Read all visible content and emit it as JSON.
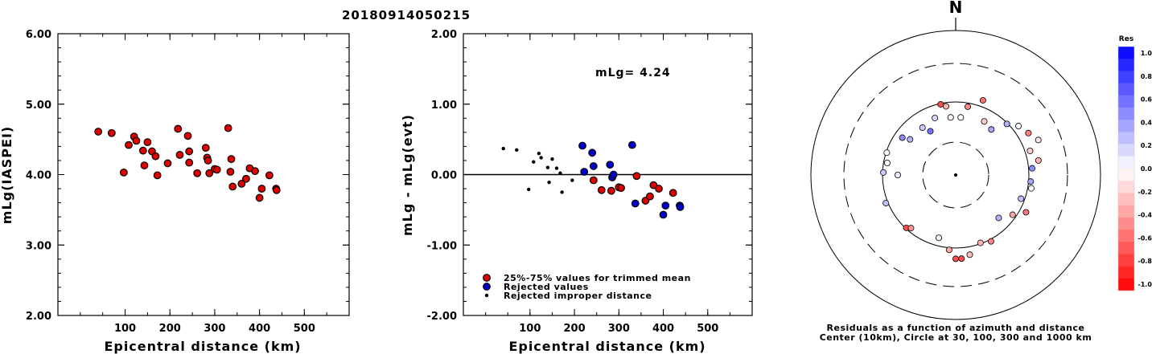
{
  "figure_title": "20180914050215",
  "chart_data": [
    {
      "type": "scatter",
      "name": "left",
      "xlabel": "Epicentral distance (km)",
      "ylabel": "mLg(IASPEI)",
      "xlim": [
        -50,
        600
      ],
      "ylim": [
        2.0,
        6.0
      ],
      "xticks": [
        100,
        200,
        300,
        400,
        500
      ],
      "yticks": [
        "2.00",
        "3.00",
        "4.00",
        "5.00",
        "6.00"
      ],
      "points": [
        [
          40,
          4.61
        ],
        [
          70,
          4.59
        ],
        [
          97,
          4.03
        ],
        [
          108,
          4.42
        ],
        [
          120,
          4.54
        ],
        [
          125,
          4.48
        ],
        [
          140,
          4.34
        ],
        [
          143,
          4.13
        ],
        [
          150,
          4.46
        ],
        [
          160,
          4.33
        ],
        [
          168,
          4.26
        ],
        [
          172,
          3.99
        ],
        [
          195,
          4.16
        ],
        [
          218,
          4.65
        ],
        [
          222,
          4.28
        ],
        [
          240,
          4.55
        ],
        [
          243,
          4.33
        ],
        [
          243,
          4.17
        ],
        [
          261,
          4.02
        ],
        [
          280,
          4.38
        ],
        [
          283,
          4.24
        ],
        [
          285,
          4.2
        ],
        [
          288,
          4.02
        ],
        [
          300,
          4.08
        ],
        [
          305,
          4.07
        ],
        [
          330,
          4.66
        ],
        [
          335,
          4.04
        ],
        [
          337,
          4.22
        ],
        [
          340,
          3.83
        ],
        [
          360,
          3.87
        ],
        [
          370,
          3.94
        ],
        [
          378,
          4.09
        ],
        [
          390,
          4.05
        ],
        [
          400,
          3.67
        ],
        [
          405,
          3.8
        ],
        [
          422,
          3.99
        ],
        [
          437,
          3.8
        ],
        [
          438,
          3.78
        ]
      ]
    },
    {
      "type": "scatter",
      "name": "middle",
      "xlabel": "Epicentral distance (km)",
      "ylabel": "mLg - mLg(evt)",
      "annotation": "mLg= 4.24",
      "xlim": [
        -50,
        600
      ],
      "ylim": [
        -2.0,
        2.0
      ],
      "xticks": [
        100,
        200,
        300,
        400,
        500
      ],
      "yticks": [
        "-2.00",
        "-1.00",
        "0.00",
        "1.00",
        "2.00"
      ],
      "zero_line": 0,
      "legend": [
        {
          "label": "25%-75% values for trimmed mean",
          "color": "#dd0000",
          "marker": "large"
        },
        {
          "label": "Rejected values",
          "color": "#0000cc",
          "marker": "large"
        },
        {
          "label": "Rejected improper distance",
          "color": "#000000",
          "marker": "small"
        }
      ],
      "series": [
        {
          "name": "25%-75% values for trimmed mean",
          "color": "#dd0000",
          "points": [
            [
              243,
              -0.08
            ],
            [
              261,
              -0.22
            ],
            [
              283,
              -0.23
            ],
            [
              300,
              -0.18
            ],
            [
              305,
              -0.19
            ],
            [
              340,
              -0.02
            ],
            [
              360,
              -0.37
            ],
            [
              370,
              -0.31
            ],
            [
              378,
              -0.15
            ],
            [
              390,
              -0.2
            ],
            [
              422,
              -0.26
            ]
          ]
        },
        {
          "name": "Rejected values",
          "color": "#0000cc",
          "points": [
            [
              218,
              0.41
            ],
            [
              222,
              0.04
            ],
            [
              240,
              0.31
            ],
            [
              243,
              0.12
            ],
            [
              280,
              0.14
            ],
            [
              285,
              -0.04
            ],
            [
              288,
              0.0
            ],
            [
              330,
              0.42
            ],
            [
              337,
              -0.41
            ],
            [
              400,
              -0.57
            ],
            [
              405,
              -0.44
            ],
            [
              437,
              -0.44
            ],
            [
              438,
              -0.46
            ]
          ]
        },
        {
          "name": "Rejected improper distance",
          "color": "#000000",
          "points": [
            [
              40,
              0.37
            ],
            [
              70,
              0.35
            ],
            [
              97,
              -0.21
            ],
            [
              108,
              0.18
            ],
            [
              120,
              0.3
            ],
            [
              125,
              0.24
            ],
            [
              140,
              0.1
            ],
            [
              143,
              -0.11
            ],
            [
              150,
              0.22
            ],
            [
              160,
              0.09
            ],
            [
              168,
              0.02
            ],
            [
              172,
              -0.25
            ],
            [
              195,
              -0.08
            ]
          ]
        }
      ]
    },
    {
      "type": "polar",
      "name": "azimuth",
      "north_label": "N",
      "caption_line1": "Residuals as a function of azimuth and distance",
      "caption_line2": "Center (10km), Circle at 30, 100, 300 and 1000 km",
      "colorbar_title": "Res",
      "colorbar_ticks": [
        "1.0",
        "0.8",
        "0.6",
        "0.4",
        "0.2",
        "0.0",
        "-0.2",
        "-0.4",
        "-0.6",
        "-0.8",
        "-1.0"
      ],
      "circles_km": [
        30,
        100,
        300,
        1000
      ],
      "points": [
        [
          -137,
          0.5,
          -0.7
        ],
        [
          -140,
          0.48,
          -0.4
        ],
        [
          -112,
          0.52,
          0.25
        ],
        [
          -88,
          0.5,
          0.2
        ],
        [
          -90,
          0.4,
          0.08
        ],
        [
          -80,
          0.48,
          0.0
        ],
        [
          -72,
          0.5,
          0.0
        ],
        [
          -55,
          0.45,
          0.45
        ],
        [
          -52,
          0.4,
          0.3
        ],
        [
          -35,
          0.4,
          0.2
        ],
        [
          -30,
          0.35,
          0.55
        ],
        [
          -20,
          0.42,
          0.15
        ],
        [
          -12,
          0.5,
          -0.7
        ],
        [
          -8,
          0.48,
          -0.3
        ],
        [
          -5,
          0.4,
          -0.05
        ],
        [
          5,
          0.4,
          0.0
        ],
        [
          10,
          0.48,
          -0.45
        ],
        [
          20,
          0.55,
          -0.55
        ],
        [
          28,
          0.42,
          -0.2
        ],
        [
          38,
          0.4,
          0.35
        ],
        [
          45,
          0.5,
          0.3
        ],
        [
          52,
          0.55,
          0.0
        ],
        [
          60,
          0.58,
          -0.5
        ],
        [
          67,
          0.62,
          -0.1
        ],
        [
          72,
          0.54,
          -0.2
        ],
        [
          80,
          0.58,
          -0.3
        ],
        [
          85,
          0.53,
          0.45
        ],
        [
          95,
          0.52,
          0.35
        ],
        [
          100,
          0.53,
          0.0
        ],
        [
          110,
          0.48,
          0.25
        ],
        [
          118,
          0.55,
          -0.55
        ],
        [
          125,
          0.48,
          -0.35
        ],
        [
          135,
          0.42,
          0.3
        ],
        [
          152,
          0.52,
          -0.5
        ],
        [
          160,
          0.5,
          -0.3
        ],
        [
          170,
          0.56,
          -0.25
        ],
        [
          176,
          0.58,
          -0.7
        ],
        [
          180,
          0.58,
          -0.7
        ],
        [
          185,
          0.52,
          -0.35
        ],
        [
          195,
          0.45,
          -0.05
        ]
      ]
    }
  ]
}
